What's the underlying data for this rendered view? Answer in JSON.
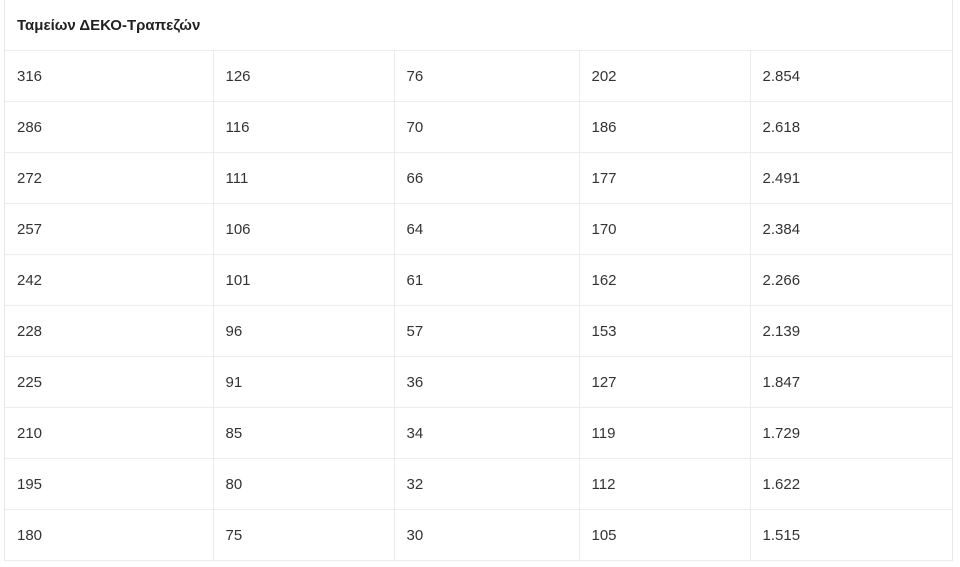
{
  "table": {
    "title": "Ταμείων ΔΕΚΟ-Τραπεζών",
    "rows": [
      [
        "316",
        "126",
        "76",
        "202",
        "2.854"
      ],
      [
        "286",
        "116",
        "70",
        "186",
        "2.618"
      ],
      [
        "272",
        "111",
        "66",
        "177",
        "2.491"
      ],
      [
        "257",
        "106",
        "64",
        "170",
        "2.384"
      ],
      [
        "242",
        "101",
        "61",
        "162",
        "2.266"
      ],
      [
        "228",
        "96",
        "57",
        "153",
        "2.139"
      ],
      [
        "225",
        "91",
        "36",
        "127",
        "1.847"
      ],
      [
        "210",
        "85",
        "34",
        "119",
        "1.729"
      ],
      [
        "195",
        "80",
        "32",
        "112",
        "1.622"
      ],
      [
        "180",
        "75",
        "30",
        "105",
        "1.515"
      ]
    ]
  }
}
